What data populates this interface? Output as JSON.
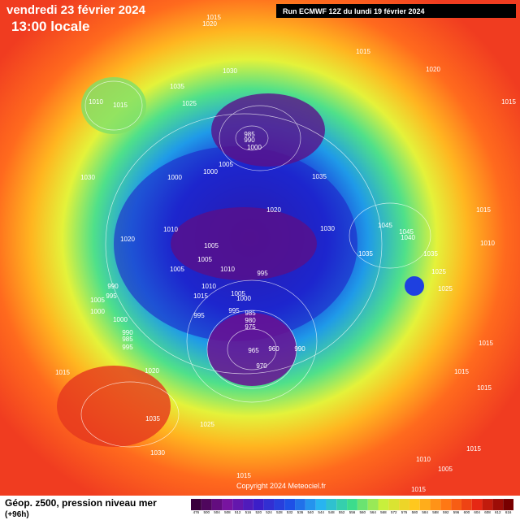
{
  "header": {
    "date": "vendredi 23 février 2024",
    "time": "13:00 locale",
    "run": "Run ECMWF 12Z du lundi 19 février 2024"
  },
  "isobar_labels": [
    "1015",
    "1020",
    "1015",
    "1020",
    "1015",
    "1010",
    "1015",
    "1035",
    "1025",
    "1030",
    "985",
    "990",
    "1000",
    "1005",
    "1000",
    "1000",
    "1030",
    "1035",
    "1020",
    "1030",
    "1045",
    "1045",
    "1040",
    "1035",
    "1035",
    "1025",
    "1015",
    "1020",
    "1010",
    "1005",
    "1005",
    "1005",
    "1010",
    "995",
    "990",
    "995",
    "1010",
    "1015",
    "1005",
    "1000",
    "1005",
    "1000",
    "995",
    "995",
    "985",
    "980",
    "975",
    "1000",
    "990",
    "985",
    "995",
    "965",
    "960",
    "990",
    "970",
    "1015",
    "1020",
    "1015",
    "1015",
    "1015",
    "1035",
    "1025",
    "1030",
    "1015",
    "1010",
    "1015",
    "1005",
    "1015",
    "1010",
    "1025"
  ],
  "footer": {
    "title": "Géop. z500, pression niveau mer",
    "lead": "(+96h)",
    "copyright": "Copyright 2024 Meteociel.fr"
  },
  "colorbar": {
    "labels": [
      476,
      500,
      504,
      508,
      512,
      516,
      520,
      524,
      528,
      532,
      536,
      540,
      544,
      548,
      552,
      556,
      560,
      564,
      568,
      572,
      576,
      580,
      584,
      588,
      592,
      596,
      600,
      604,
      608,
      612,
      616
    ]
  }
}
